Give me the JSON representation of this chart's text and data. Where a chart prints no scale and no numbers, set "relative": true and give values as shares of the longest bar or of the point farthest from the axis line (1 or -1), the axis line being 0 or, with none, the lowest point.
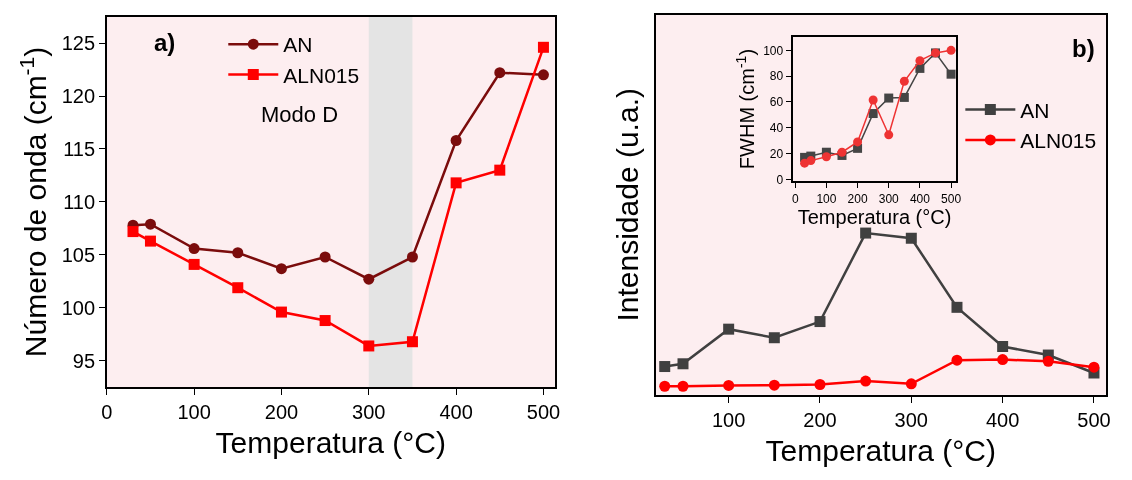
{
  "chart_data": [
    {
      "type": "line",
      "xlabel": "Temperatura (°C)",
      "ylabel": "Número de onda (cm$^{-1}$)",
      "xlim": [
        0,
        513
      ],
      "xticks": [
        0,
        100,
        200,
        300,
        400,
        500
      ],
      "ylim": [
        92.5,
        127.5
      ],
      "yticks": [
        95,
        100,
        105,
        110,
        115,
        120,
        125
      ],
      "grid": false,
      "legend": "top",
      "line_style": "solid",
      "annotations": [
        "a)",
        "Modo D"
      ],
      "bands": [
        {
          "axis": "x",
          "from": 300,
          "to": 350,
          "color": "#e4e4e4"
        }
      ],
      "x": [
        30,
        50,
        100,
        150,
        200,
        250,
        300,
        350,
        400,
        450,
        500
      ],
      "series": [
        {
          "name": "AN",
          "color": "#7b0c0c",
          "marker": "circle",
          "values": [
            107.8,
            107.9,
            105.6,
            105.2,
            103.7,
            104.8,
            102.7,
            104.8,
            115.8,
            122.2,
            122.0
          ]
        },
        {
          "name": "ALN015",
          "color": "#ff0000",
          "marker": "square",
          "values": [
            107.2,
            106.3,
            104.1,
            101.9,
            99.6,
            98.8,
            96.4,
            96.8,
            111.8,
            113.0,
            124.6
          ]
        }
      ]
    },
    {
      "type": "line",
      "relative": true,
      "xlabel": "Temperatura (°C)",
      "ylabel": "Intensidade (u.a.)",
      "xlim": [
        20,
        513
      ],
      "xticks": [
        100,
        200,
        300,
        400,
        500
      ],
      "grid": false,
      "legend": "right",
      "tick_labels": "x",
      "line_style": "solid",
      "annotations": [
        "b)"
      ],
      "x": [
        30,
        50,
        100,
        150,
        200,
        250,
        300,
        350,
        400,
        450,
        500
      ],
      "series": [
        {
          "name": "AN",
          "color": "#404040",
          "marker": "square",
          "values": [
            0.175,
            0.192,
            0.406,
            0.353,
            0.453,
            1,
            0.968,
            0.541,
            0.299,
            0.246,
            0.135
          ]
        },
        {
          "name": "ALN015",
          "color": "#ff0000",
          "marker": "circle",
          "values": [
            0.053,
            0.053,
            0.058,
            0.06,
            0.064,
            0.085,
            0.068,
            0.214,
            0.218,
            0.207,
            0.171
          ]
        }
      ]
    },
    {
      "type": "line",
      "xlabel": "Temperatura (°C)",
      "ylabel": "FWHM (cm$^{-1}$)",
      "xlim": [
        -6,
        515
      ],
      "xticks": [
        0,
        100,
        200,
        300,
        400,
        500
      ],
      "ylim": [
        -1,
        110
      ],
      "yticks": [
        0,
        20,
        40,
        60,
        80,
        100
      ],
      "grid": false,
      "legend": false,
      "line_style": "solid",
      "x": [
        30,
        50,
        100,
        150,
        200,
        250,
        300,
        350,
        400,
        450,
        500
      ],
      "series": [
        {
          "color": "#454545",
          "marker": "square",
          "values": [
            17,
            18,
            21,
            18.5,
            24,
            51,
            63,
            63.5,
            86,
            98,
            81.5
          ]
        },
        {
          "color": "#ee3333",
          "marker": "circle",
          "values": [
            12.5,
            14.5,
            17.5,
            21,
            29,
            61.5,
            34.5,
            76,
            92,
            98,
            100
          ]
        }
      ]
    }
  ]
}
